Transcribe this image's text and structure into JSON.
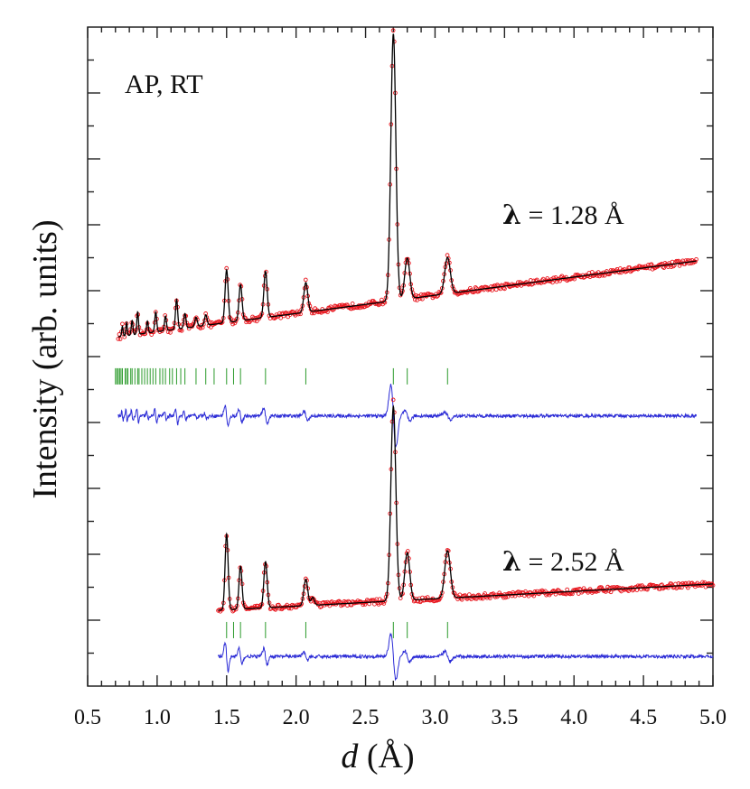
{
  "chart_data": {
    "type": "line",
    "xlabel_italic": "d",
    "xlabel_unit": "(Å)",
    "ylabel": "Intensity (arb. units)",
    "xlim": [
      0.5,
      5.0
    ],
    "xticks": [
      "0.5",
      "1.0",
      "1.5",
      "2.0",
      "2.5",
      "3.0",
      "3.5",
      "4.0",
      "4.5",
      "5.0"
    ],
    "ylim": [
      0,
      10
    ],
    "annotations": {
      "sample": "AP, RT",
      "lambda_top_symbol": "λ",
      "lambda_top_text": " = 1.28 Å",
      "lambda_bottom_symbol": "λ",
      "lambda_bottom_text": " = 2.52 Å"
    },
    "colors": {
      "observed": "#e8141c",
      "calculated": "#000000",
      "difference": "#2b2bd6",
      "bragg": "#2a9a2a"
    },
    "panels": [
      {
        "name": "lambda-1.28",
        "x_range": [
          0.72,
          4.88
        ],
        "background": {
          "start": 5.3,
          "end": 6.45
        },
        "peaks": [
          {
            "d": 2.7,
            "height": 4.05,
            "width": 0.018
          },
          {
            "d": 2.8,
            "height": 0.62,
            "width": 0.018
          },
          {
            "d": 3.09,
            "height": 0.55,
            "width": 0.02
          },
          {
            "d": 2.07,
            "height": 0.45,
            "width": 0.014
          },
          {
            "d": 1.78,
            "height": 0.7,
            "width": 0.012
          },
          {
            "d": 1.6,
            "height": 0.55,
            "width": 0.011
          },
          {
            "d": 1.5,
            "height": 0.8,
            "width": 0.011
          },
          {
            "d": 1.35,
            "height": 0.16,
            "width": 0.009
          },
          {
            "d": 1.28,
            "height": 0.14,
            "width": 0.009
          },
          {
            "d": 1.2,
            "height": 0.22,
            "width": 0.008
          },
          {
            "d": 1.14,
            "height": 0.45,
            "width": 0.008
          },
          {
            "d": 1.06,
            "height": 0.22,
            "width": 0.007
          },
          {
            "d": 0.99,
            "height": 0.3,
            "width": 0.007
          },
          {
            "d": 0.93,
            "height": 0.18,
            "width": 0.006
          },
          {
            "d": 0.86,
            "height": 0.34,
            "width": 0.006
          },
          {
            "d": 0.82,
            "height": 0.22,
            "width": 0.006
          },
          {
            "d": 0.78,
            "height": 0.2,
            "width": 0.005
          },
          {
            "d": 0.75,
            "height": 0.15,
            "width": 0.005
          }
        ],
        "bragg_y": 4.7,
        "bragg_positions": [
          3.09,
          2.8,
          2.7,
          2.07,
          1.78,
          1.6,
          1.55,
          1.5,
          1.41,
          1.35,
          1.28,
          1.2,
          1.17,
          1.14,
          1.11,
          1.09,
          1.06,
          1.04,
          1.02,
          0.99,
          0.97,
          0.95,
          0.93,
          0.91,
          0.89,
          0.87,
          0.86,
          0.84,
          0.82,
          0.81,
          0.79,
          0.78,
          0.77,
          0.75,
          0.74,
          0.73,
          0.72,
          0.71,
          0.7
        ],
        "difference_baseline": 4.1
      },
      {
        "name": "lambda-2.52",
        "x_range": [
          1.44,
          5.0
        ],
        "background": {
          "start": 1.15,
          "end": 1.55
        },
        "peaks": [
          {
            "d": 2.7,
            "height": 2.95,
            "width": 0.018
          },
          {
            "d": 2.8,
            "height": 0.72,
            "width": 0.018
          },
          {
            "d": 3.09,
            "height": 0.72,
            "width": 0.02
          },
          {
            "d": 2.07,
            "height": 0.4,
            "width": 0.014
          },
          {
            "d": 1.78,
            "height": 0.7,
            "width": 0.012
          },
          {
            "d": 1.6,
            "height": 0.65,
            "width": 0.011
          },
          {
            "d": 1.5,
            "height": 1.15,
            "width": 0.011
          },
          {
            "d": 2.12,
            "height": 0.12,
            "width": 0.012
          }
        ],
        "bragg_y": 0.85,
        "bragg_positions": [
          3.09,
          2.8,
          2.7,
          2.07,
          1.78,
          1.6,
          1.55,
          1.5
        ],
        "difference_baseline": 0.45
      }
    ]
  }
}
